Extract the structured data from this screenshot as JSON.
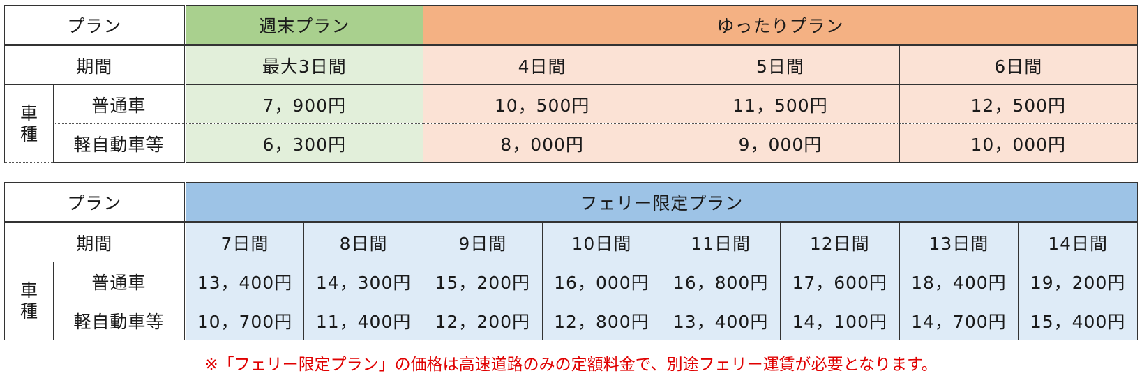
{
  "table1": {
    "plan_label": "プラン",
    "period_label": "期間",
    "vehicle_label": "車種",
    "plans": [
      {
        "name": "週末プラン",
        "color": "#a9d08e",
        "periods": [
          "最大3日間"
        ]
      },
      {
        "name": "ゆったりプラン",
        "color": "#f4b183",
        "periods": [
          "4日間",
          "5日間",
          "6日間"
        ]
      }
    ],
    "rows": [
      {
        "label": "普通車",
        "prices": [
          "7，900円",
          "10，500円",
          "11，500円",
          "12，500円"
        ]
      },
      {
        "label": "軽自動車等",
        "prices": [
          "6，300円",
          "8，000円",
          "9，000円",
          "10，000円"
        ]
      }
    ]
  },
  "table2": {
    "plan_label": "プラン",
    "period_label": "期間",
    "vehicle_label": "車種",
    "plan_name": "フェリー限定プラン",
    "plan_color": "#9dc3e6",
    "periods": [
      "7日間",
      "8日間",
      "9日間",
      "10日間",
      "11日間",
      "12日間",
      "13日間",
      "14日間"
    ],
    "rows": [
      {
        "label": "普通車",
        "prices": [
          "13，400円",
          "14，300円",
          "15，200円",
          "16，000円",
          "16，800円",
          "17，600円",
          "18，400円",
          "19，200円"
        ]
      },
      {
        "label": "軽自動車等",
        "prices": [
          "10，700円",
          "11，400円",
          "12，200円",
          "12，800円",
          "13，400円",
          "14，100円",
          "14，700円",
          "15，400円"
        ]
      }
    ]
  },
  "note": "※「フェリー限定プラン」の価格は高速道路のみの定額料金で、別途フェリー運賃が必要となります。"
}
